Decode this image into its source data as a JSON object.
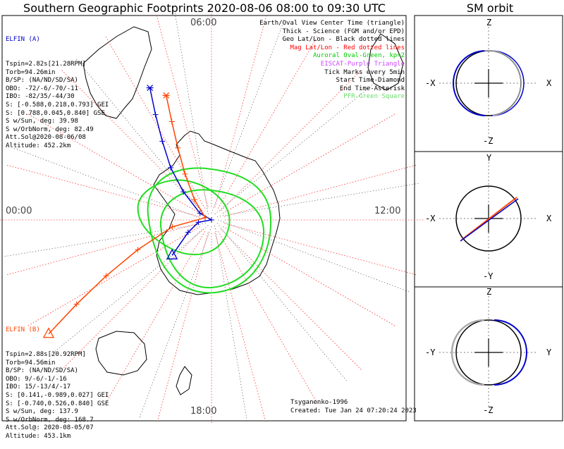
{
  "title": "Southern Geographic Footprints 2020-08-06 08:00 to 09:30 UTC",
  "sm_title": "SM orbit",
  "mlt_labels": {
    "top": "06:00",
    "left": "00:00",
    "right": "12:00",
    "bottom": "18:00"
  },
  "elfin_a": {
    "name": "ELFIN (A)",
    "color": "#0000cc",
    "lines": [
      "Tspin=2.82s[21.28RPM]",
      "Torb=94.26min",
      "B/SP: (NA/ND/SD/SA)",
      "OBO: -72/-6/-70/-11",
      "IBO: -82/35/-44/30",
      "S: [-0.588,0.218,0.793] GEI",
      "S: [0.788,0.045,0.840] GSE",
      "S w/Sun, deg: 39.98",
      "S w/OrbNorm, deg: 82.49",
      "Att.Sol@2020-08-06/08",
      "Altitude: 452.2km"
    ]
  },
  "elfin_b": {
    "name": "ELFIN (B)",
    "color": "#ff4400",
    "lines": [
      "Tspin=2.88s[20.92RPM]",
      "Torb=94.56min",
      "B/SP: (NA/ND/SD/SA)",
      "OBO: 9/-6/-1/-16",
      "IBO: 15/-13/4/-17",
      "S: [0.141,-0.989,0.027] GEI",
      "S: [-0.740,0.526,0.840] GSE",
      "S w/Sun, deg: 137.9",
      "S w/OrbNorm, deg: 168.7",
      "Att.Sol@: 2020-08-05/07",
      "Altitude: 453.1km"
    ]
  },
  "legend": [
    {
      "text": "Earth/Oval View Center Time (triangle)",
      "color": "#000000"
    },
    {
      "text": "Thick - Science (FGM and/or EPD)",
      "color": "#000000"
    },
    {
      "text": "Geo Lat/Lon - Black dotted lines",
      "color": "#000000"
    },
    {
      "text": "Mag Lat/Lon - Red dotted lines",
      "color": "#ff0000"
    },
    {
      "text": "Auroral Oval-Green, kp=2",
      "color": "#00cc00"
    },
    {
      "text": "EISCAT-Purple Triangle",
      "color": "#cc44ff"
    },
    {
      "text": "Tick Marks every 5min",
      "color": "#000000"
    },
    {
      "text": "Start Time-Diamond",
      "color": "#000000"
    },
    {
      "text": "End Time-Asterisk",
      "color": "#000000"
    },
    {
      "text": "PFR-Green Square",
      "color": "#66dd66"
    }
  ],
  "footer": {
    "model": "Tsyganenko-1996",
    "created": "Created: Tue Jan 24 07:20:24 2023"
  },
  "sm_panels": [
    {
      "top": "Z",
      "bottom": "-Z",
      "left": "-X",
      "right": "X"
    },
    {
      "top": "Y",
      "bottom": "-Y",
      "left": "-X",
      "right": "X"
    },
    {
      "top": "Z",
      "bottom": "-Z",
      "left": "-Y",
      "right": "Y"
    }
  ],
  "chart_data": {
    "type": "line",
    "projection": "south polar (magnetic local time)",
    "grid": true,
    "series": [
      {
        "name": "ELFIN (A)",
        "color": "#0000cc",
        "track": [
          [
            -82,
            -132
          ],
          [
            -86,
            -118
          ],
          [
            -88,
            -100
          ],
          [
            -90,
            -80
          ],
          [
            -88,
            -60
          ],
          [
            -84,
            -45
          ],
          [
            -80,
            -38
          ],
          [
            -76,
            -32
          ],
          [
            -72,
            -28
          ],
          [
            -68,
            -25
          ]
        ]
      },
      {
        "name": "ELFIN (B)",
        "color": "#ff4400",
        "track": [
          [
            -60,
            -125
          ],
          [
            -66,
            -122
          ],
          [
            -72,
            -118
          ],
          [
            -78,
            -112
          ],
          [
            -84,
            -100
          ],
          [
            -89,
            -70
          ],
          [
            -86,
            -40
          ],
          [
            -82,
            -30
          ],
          [
            -78,
            -25
          ],
          [
            -74,
            -22
          ],
          [
            -70,
            -20
          ]
        ]
      }
    ]
  }
}
